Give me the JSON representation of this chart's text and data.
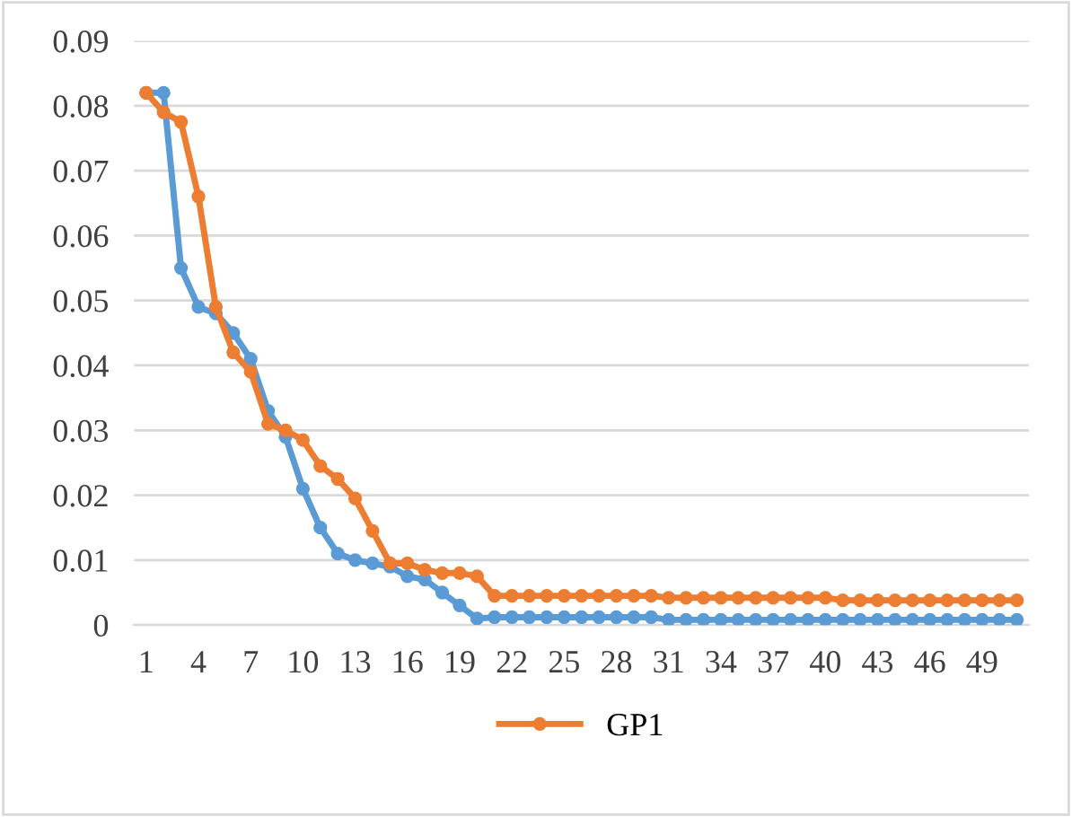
{
  "chart_data": {
    "type": "line",
    "categories": [
      "1",
      null,
      null,
      "4",
      null,
      null,
      "7",
      null,
      null,
      "10",
      null,
      null,
      "13",
      null,
      null,
      "16",
      null,
      null,
      "19",
      null,
      null,
      "22",
      null,
      null,
      "25",
      null,
      null,
      "28",
      null,
      null,
      "31",
      null,
      null,
      "34",
      null,
      null,
      "37",
      null,
      null,
      "40",
      null,
      null,
      "43",
      null,
      null,
      "46",
      null,
      null,
      "49",
      null,
      null
    ],
    "series": [
      {
        "color": "#5b9bd5",
        "values": [
          0.082,
          0.082,
          0.055,
          0.049,
          0.048,
          0.045,
          0.041,
          0.033,
          0.029,
          0.021,
          0.015,
          0.011,
          0.01,
          0.0095,
          0.009,
          0.0075,
          0.007,
          0.005,
          0.003,
          0.001,
          0.0012,
          0.0012,
          0.0012,
          0.0012,
          0.0012,
          0.0012,
          0.0012,
          0.0012,
          0.0012,
          0.0012,
          0.0008,
          0.0008,
          0.0008,
          0.0008,
          0.0008,
          0.0008,
          0.0008,
          0.0008,
          0.0008,
          0.0008,
          0.0008,
          0.0008,
          0.0008,
          0.0008,
          0.0008,
          0.0008,
          0.0008,
          0.0008,
          0.0008,
          0.0008,
          0.0008
        ]
      },
      {
        "name": "GP1",
        "color": "#ed7d31",
        "values": [
          0.082,
          0.079,
          0.0775,
          0.066,
          0.049,
          0.042,
          0.039,
          0.031,
          0.03,
          0.0285,
          0.0245,
          0.0225,
          0.0195,
          0.0145,
          0.0095,
          0.0095,
          0.0085,
          0.008,
          0.008,
          0.0075,
          0.0045,
          0.0045,
          0.0045,
          0.0045,
          0.0045,
          0.0045,
          0.0045,
          0.0045,
          0.0045,
          0.0045,
          0.0042,
          0.0042,
          0.0042,
          0.0042,
          0.0042,
          0.0042,
          0.0042,
          0.0042,
          0.0042,
          0.0042,
          0.0038,
          0.0038,
          0.0038,
          0.0038,
          0.0038,
          0.0038,
          0.0038,
          0.0038,
          0.0038,
          0.0038,
          0.0038
        ]
      }
    ],
    "ylim": [
      0,
      0.09
    ],
    "yticks": [
      0,
      0.01,
      0.02,
      0.03,
      0.04,
      0.05,
      0.06,
      0.07,
      0.08,
      0.09
    ],
    "grid": "y",
    "legend": "bottom",
    "marker": "circle",
    "line_style": "solid"
  }
}
